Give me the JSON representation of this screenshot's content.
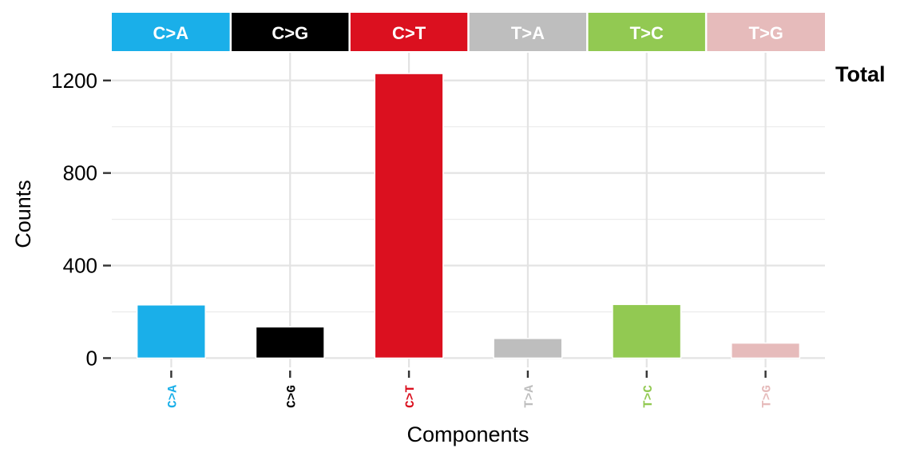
{
  "chart_data": {
    "type": "bar",
    "categories": [
      "C>A",
      "C>G",
      "C>T",
      "T>A",
      "T>C",
      "T>G"
    ],
    "values": [
      230,
      135,
      1230,
      85,
      232,
      65
    ],
    "colors": [
      "#1AAFE9",
      "#000000",
      "#DB101F",
      "#BEBEBE",
      "#92C952",
      "#E6BBBB"
    ],
    "facet_strip_labels": [
      "C>A",
      "C>G",
      "C>T",
      "T>A",
      "T>C",
      "T>G"
    ],
    "facet_label_right": "Total",
    "xlabel": "Components",
    "ylabel": "Counts",
    "yticks": [
      0,
      400,
      800,
      1200
    ],
    "ylim": [
      -40,
      1320
    ],
    "grid": true,
    "legend": "none"
  }
}
